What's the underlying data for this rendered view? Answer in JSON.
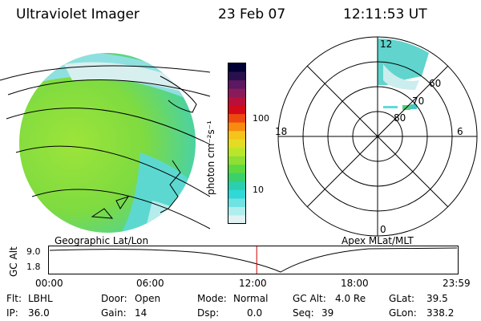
{
  "header": {
    "instrument": "Ultraviolet Imager",
    "date": "23 Feb 07",
    "time": "12:11:53 UT"
  },
  "colorbar": {
    "unit_label": "photon cm⁻²s⁻¹",
    "ticks": [
      "100",
      "10"
    ],
    "colors": [
      "#000033",
      "#2a0f4f",
      "#5c1860",
      "#8a1b5a",
      "#b8103a",
      "#d40a1a",
      "#ee4a10",
      "#f88a10",
      "#f6c31a",
      "#e3dc23",
      "#b9e62a",
      "#8ede34",
      "#5dd840",
      "#3ad06b",
      "#2bcfb0",
      "#30d8d8",
      "#6fe2e2",
      "#b0eded",
      "#e0f2f2"
    ]
  },
  "panels": {
    "left_caption": "Geographic Lat/Lon",
    "right_caption": "Apex MLat/MLT"
  },
  "polar": {
    "mlt_labels": {
      "top": "12",
      "left": "18",
      "right": "6",
      "bottom": "0"
    },
    "lat_labels": [
      "60",
      "70",
      "80"
    ]
  },
  "altitude_plot": {
    "ylabel": "GC Alt",
    "yticks": [
      "9.0",
      "1.8"
    ],
    "xticks": [
      "00:00",
      "06:00",
      "12:00",
      "18:00",
      "23:59"
    ],
    "current_fraction": 0.5083
  },
  "status": {
    "row1": [
      {
        "key": "Flt:",
        "value": "LBHL"
      },
      {
        "key": "Door:",
        "value": "Open"
      },
      {
        "key": "Mode:",
        "value": "Normal"
      },
      {
        "key": "GC Alt:",
        "value": "4.0 Re"
      },
      {
        "key": "GLat:",
        "value": "39.5"
      }
    ],
    "row2": [
      {
        "key": "IP:",
        "value": "36.0"
      },
      {
        "key": "Gain:",
        "value": "14"
      },
      {
        "key": "Dsp:",
        "value": "0.0"
      },
      {
        "key": "Seq:",
        "value": "39"
      },
      {
        "key": "GLon:",
        "value": "338.2"
      }
    ]
  }
}
